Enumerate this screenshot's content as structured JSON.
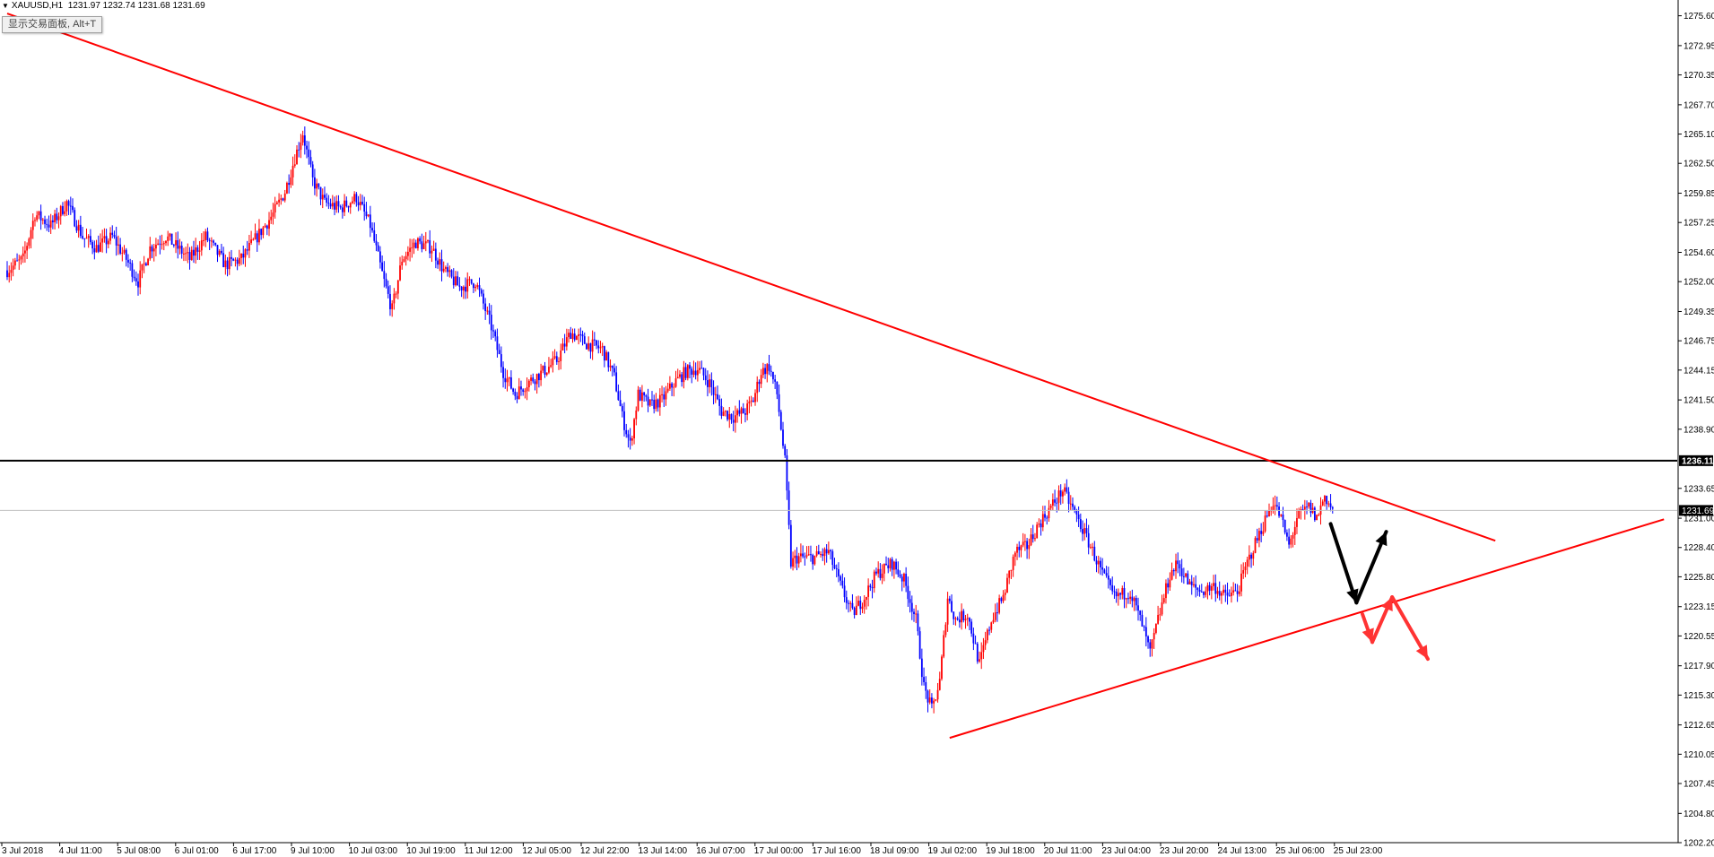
{
  "header": {
    "symbol": "XAUUSD,H1",
    "ohlc": "1231.97 1232.74 1231.68 1231.69"
  },
  "trade_panel_button": "显示交易面板, Alt+T",
  "colors": {
    "bull": "#ff0000",
    "bear": "#0000ff",
    "trendline": "#ff0000",
    "level": "#000000",
    "bid": "#c0c0c0",
    "arrow_up_down": "#000000",
    "arrow_down_break": "#ff3333"
  },
  "chart_data": {
    "type": "candlestick",
    "symbol": "XAUUSD",
    "timeframe": "H1",
    "ylim": [
      1202.2,
      1277.0
    ],
    "y_ticks": [
      "1275.60",
      "1272.95",
      "1270.35",
      "1267.70",
      "1265.10",
      "1262.50",
      "1259.85",
      "1257.25",
      "1254.60",
      "1252.00",
      "1249.35",
      "1246.75",
      "1244.15",
      "1241.50",
      "1238.90",
      "1233.65",
      "1231.00",
      "1228.40",
      "1225.80",
      "1223.15",
      "1220.55",
      "1217.90",
      "1215.30",
      "1212.65",
      "1210.05",
      "1207.45",
      "1204.80",
      "1202.20"
    ],
    "x_labels": [
      "3 Jul 2018",
      "4 Jul 11:00",
      "5 Jul 08:00",
      "6 Jul 01:00",
      "6 Jul 17:00",
      "9 Jul 10:00",
      "10 Jul 03:00",
      "10 Jul 19:00",
      "11 Jul 12:00",
      "12 Jul 05:00",
      "12 Jul 22:00",
      "13 Jul 14:00",
      "16 Jul 07:00",
      "17 Jul 00:00",
      "17 Jul 16:00",
      "18 Jul 09:00",
      "19 Jul 02:00",
      "19 Jul 18:00",
      "20 Jul 11:00",
      "23 Jul 04:00",
      "23 Jul 20:00",
      "24 Jul 13:00",
      "25 Jul 06:00",
      "25 Jul 23:00"
    ],
    "level_line": {
      "value": 1236.11,
      "label": "1236.11"
    },
    "bid_line": {
      "value": 1231.69,
      "label": "1231.69"
    },
    "close_path": [
      [
        0,
        1253
      ],
      [
        8,
        1254
      ],
      [
        14,
        1258
      ],
      [
        22,
        1257
      ],
      [
        30,
        1259
      ],
      [
        38,
        1256
      ],
      [
        45,
        1255
      ],
      [
        53,
        1256
      ],
      [
        60,
        1254
      ],
      [
        66,
        1252
      ],
      [
        72,
        1255
      ],
      [
        80,
        1256
      ],
      [
        86,
        1255
      ],
      [
        92,
        1254
      ],
      [
        100,
        1256
      ],
      [
        110,
        1253.5
      ],
      [
        118,
        1254
      ],
      [
        126,
        1256
      ],
      [
        134,
        1258
      ],
      [
        140,
        1260
      ],
      [
        145,
        1263
      ],
      [
        149,
        1265.2
      ],
      [
        154,
        1261
      ],
      [
        160,
        1259
      ],
      [
        168,
        1258.5
      ],
      [
        176,
        1259.5
      ],
      [
        183,
        1257
      ],
      [
        190,
        1252
      ],
      [
        194,
        1249.5
      ],
      [
        199,
        1254
      ],
      [
        206,
        1255.5
      ],
      [
        214,
        1255
      ],
      [
        220,
        1253
      ],
      [
        228,
        1251.5
      ],
      [
        236,
        1252
      ],
      [
        244,
        1248
      ],
      [
        250,
        1244
      ],
      [
        256,
        1242
      ],
      [
        262,
        1243
      ],
      [
        270,
        1244
      ],
      [
        277,
        1245
      ],
      [
        284,
        1247.5
      ],
      [
        292,
        1246.5
      ],
      [
        300,
        1246
      ],
      [
        306,
        1243.5
      ],
      [
        310,
        1240
      ],
      [
        314,
        1237.5
      ],
      [
        318,
        1242
      ],
      [
        324,
        1241
      ],
      [
        330,
        1241.5
      ],
      [
        336,
        1243
      ],
      [
        342,
        1244
      ],
      [
        348,
        1244.3
      ],
      [
        354,
        1243
      ],
      [
        360,
        1240.5
      ],
      [
        366,
        1240
      ],
      [
        372,
        1240.5
      ],
      [
        376,
        1241.5
      ],
      [
        380,
        1244
      ],
      [
        384,
        1244.5
      ],
      [
        388,
        1242
      ],
      [
        392,
        1236
      ],
      [
        395,
        1227
      ],
      [
        398,
        1227.5
      ],
      [
        406,
        1227.5
      ],
      [
        414,
        1228
      ],
      [
        420,
        1225
      ],
      [
        426,
        1222.5
      ],
      [
        432,
        1224
      ],
      [
        438,
        1226
      ],
      [
        446,
        1227
      ],
      [
        452,
        1225.5
      ],
      [
        458,
        1222
      ],
      [
        462,
        1216
      ],
      [
        466,
        1214
      ],
      [
        470,
        1216.5
      ],
      [
        474,
        1224
      ],
      [
        478,
        1222
      ],
      [
        484,
        1222.5
      ],
      [
        490,
        1218
      ],
      [
        496,
        1222
      ],
      [
        502,
        1224
      ],
      [
        508,
        1228
      ],
      [
        514,
        1228.5
      ],
      [
        520,
        1230.5
      ],
      [
        526,
        1232
      ],
      [
        532,
        1233.5
      ],
      [
        538,
        1231.5
      ],
      [
        546,
        1228.5
      ],
      [
        552,
        1226
      ],
      [
        558,
        1224
      ],
      [
        566,
        1224.5
      ],
      [
        572,
        1221.5
      ],
      [
        576,
        1219
      ],
      [
        580,
        1222
      ],
      [
        586,
        1226
      ],
      [
        590,
        1227
      ],
      [
        596,
        1225
      ],
      [
        602,
        1224.5
      ],
      [
        608,
        1225
      ],
      [
        614,
        1224
      ],
      [
        620,
        1224.5
      ],
      [
        626,
        1227.5
      ],
      [
        632,
        1230
      ],
      [
        638,
        1232.5
      ],
      [
        642,
        1231
      ],
      [
        646,
        1228.5
      ],
      [
        650,
        1231
      ],
      [
        656,
        1232
      ],
      [
        660,
        1231
      ],
      [
        664,
        1233
      ],
      [
        668,
        1231.7
      ]
    ],
    "candle_count": 669,
    "trendlines": [
      {
        "name": "descending-resistance",
        "from": [
          0,
          1275.8
        ],
        "to": [
          750,
          1229.0
        ]
      },
      {
        "name": "ascending-support",
        "from": [
          475,
          1211.5
        ],
        "to": [
          835,
          1230.9
        ]
      }
    ],
    "projection_arrows": [
      {
        "name": "bounce-scenario",
        "color": "black",
        "points": [
          [
            667,
            1230.5
          ],
          [
            680,
            1223.5
          ],
          [
            695,
            1229.8
          ]
        ]
      },
      {
        "name": "breakdown-scenario",
        "color": "red",
        "points": [
          [
            683,
            1222.5
          ],
          [
            688,
            1220.0
          ],
          [
            698,
            1224.0
          ],
          [
            716,
            1218.5
          ]
        ]
      }
    ]
  }
}
